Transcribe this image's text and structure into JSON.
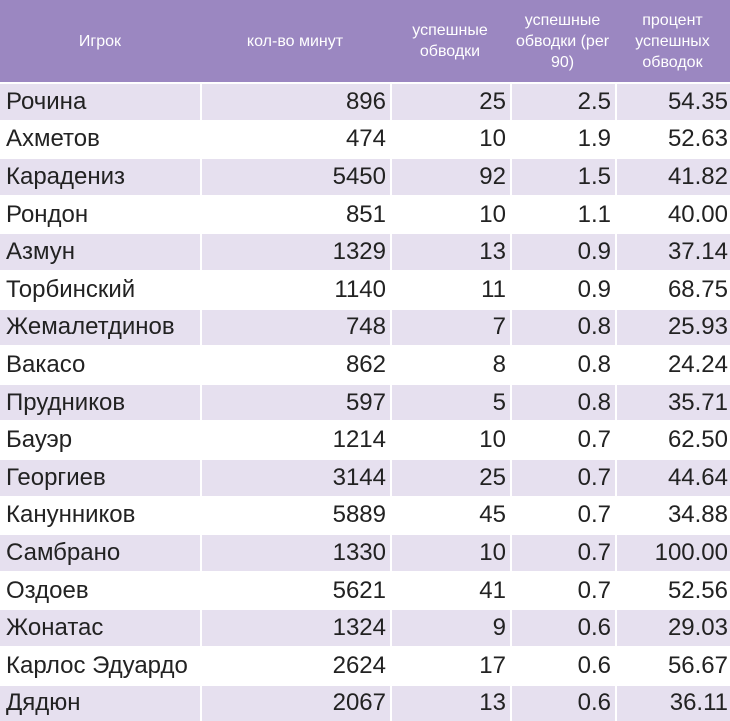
{
  "table": {
    "headers": [
      "Игрок",
      "кол-во минут",
      "успешные обводки",
      "успешные обводки (per 90)",
      "процент успешных обводок"
    ],
    "rows": [
      [
        "Рочина",
        "896",
        "25",
        "2.5",
        "54.35"
      ],
      [
        "Ахметов",
        "474",
        "10",
        "1.9",
        "52.63"
      ],
      [
        "Карадениз",
        "5450",
        "92",
        "1.5",
        "41.82"
      ],
      [
        "Рондон",
        "851",
        "10",
        "1.1",
        "40.00"
      ],
      [
        "Азмун",
        "1329",
        "13",
        "0.9",
        "37.14"
      ],
      [
        "Торбинский",
        "1140",
        "11",
        "0.9",
        "68.75"
      ],
      [
        "Жемалетдинов",
        "748",
        "7",
        "0.8",
        "25.93"
      ],
      [
        "Вакасо",
        "862",
        "8",
        "0.8",
        "24.24"
      ],
      [
        "Прудников",
        "597",
        "5",
        "0.8",
        "35.71"
      ],
      [
        "Бауэр",
        "1214",
        "10",
        "0.7",
        "62.50"
      ],
      [
        "Георгиев",
        "3144",
        "25",
        "0.7",
        "44.64"
      ],
      [
        "Канунников",
        "5889",
        "45",
        "0.7",
        "34.88"
      ],
      [
        "Самбрано",
        "1330",
        "10",
        "0.7",
        "100.00"
      ],
      [
        "Оздоев",
        "5621",
        "41",
        "0.7",
        "52.56"
      ],
      [
        "Жонатас",
        "1324",
        "9",
        "0.6",
        "29.03"
      ],
      [
        "Карлос Эдуардо",
        "2624",
        "17",
        "0.6",
        "56.67"
      ],
      [
        "Дядюн",
        "2067",
        "13",
        "0.6",
        "36.11"
      ]
    ]
  },
  "colors": {
    "header_bg": "#9b87c1",
    "band_odd": "#e6e0ef",
    "band_even": "#ffffff"
  }
}
